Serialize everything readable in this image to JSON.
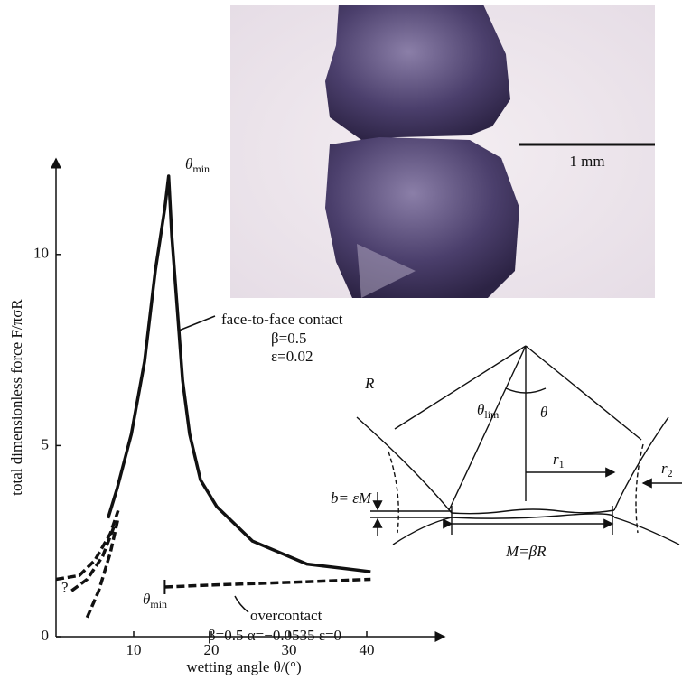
{
  "chart_data": {
    "type": "line",
    "x_label": "wetting angle θ/(°)",
    "y_label": "total dimensionless force F/πσR",
    "xlim": [
      0,
      50
    ],
    "ylim": [
      0,
      12.5
    ],
    "xticks": [
      10,
      20,
      30,
      40
    ],
    "yticks": [
      0,
      5,
      10
    ],
    "series": [
      {
        "color": "#111111",
        "dashed": false,
        "x": [
          6.7,
          7.9,
          9.7,
          11.4,
          12.8,
          14,
          14.5,
          14.9,
          15.6,
          16.3,
          17.2,
          18.6,
          20.7,
          25.3,
          32.3,
          40.5
        ],
        "values": [
          3.1,
          3.9,
          5.3,
          7.2,
          9.6,
          11.2,
          12.05,
          10.5,
          8.6,
          6.7,
          5.3,
          4.1,
          3.4,
          2.5,
          1.9,
          1.7
        ]
      },
      {
        "color": "#111111",
        "dashed": true,
        "x": [
          14,
          20,
          30,
          40.5
        ],
        "values": [
          1.3,
          1.35,
          1.42,
          1.5
        ]
      },
      {
        "color": "#111111",
        "dashed": true,
        "x": [
          0,
          3,
          5,
          7,
          8
        ],
        "values": [
          1.5,
          1.6,
          2.0,
          2.7,
          3.3
        ]
      },
      {
        "color": "#111111",
        "dashed": true,
        "x": [
          2,
          4,
          6,
          7.5
        ],
        "values": [
          1.2,
          1.5,
          2.1,
          2.9
        ]
      },
      {
        "color": "#111111",
        "dashed": true,
        "x": [
          4,
          5.5,
          7,
          8
        ],
        "values": [
          0.5,
          1.2,
          2.2,
          3.1
        ]
      }
    ],
    "annotations": {
      "peak": {
        "symbol": "θ",
        "sub": "min"
      },
      "face_to_face": "face-to-face contact",
      "beta1": "β=0.5",
      "eps1": "ε=0.02",
      "overcontact_start": {
        "symbol": "θ",
        "sub": "min"
      },
      "overcontact": "overcontact",
      "params2": "β=0.5  α=−0.0535  ε=0",
      "unknown": "?"
    }
  },
  "photo": {
    "scale_bar": "1 mm"
  },
  "diagram": {
    "R": "R",
    "theta": "θ",
    "theta_lim": {
      "symbol": "θ",
      "sub": "lim"
    },
    "r1": {
      "symbol": "r",
      "sub": "1"
    },
    "r2": {
      "symbol": "r",
      "sub": "2"
    },
    "b": "b= εM",
    "M": "M=βR"
  }
}
